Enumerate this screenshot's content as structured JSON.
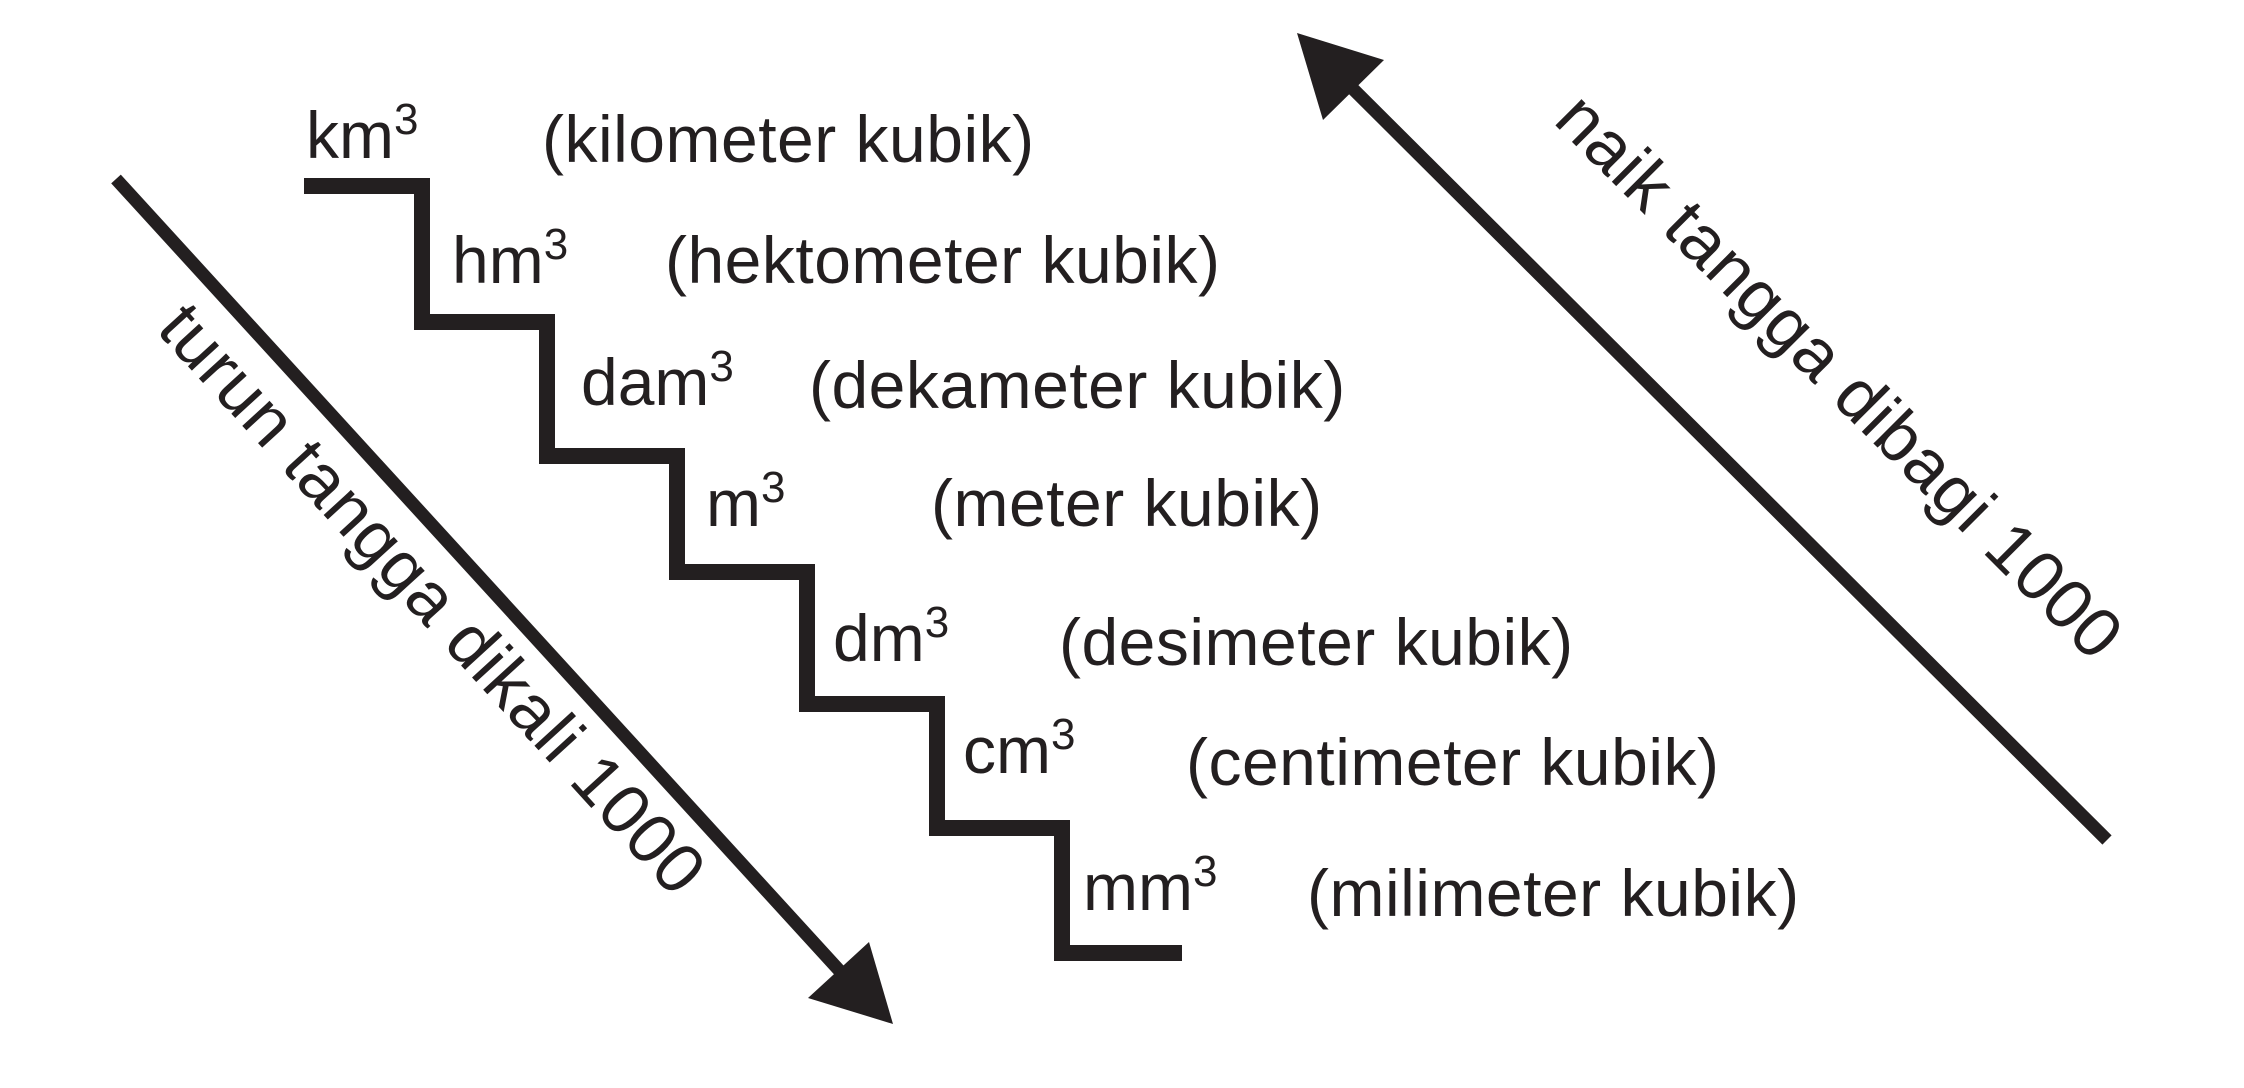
{
  "colors": {
    "ink": "#231f20",
    "background": "#ffffff"
  },
  "units": [
    {
      "symbol": "km",
      "exp": "3",
      "name": "(kilometer kubik)"
    },
    {
      "symbol": "hm",
      "exp": "3",
      "name": "(hektometer kubik)"
    },
    {
      "symbol": "dam",
      "exp": "3",
      "name": "(dekameter kubik)"
    },
    {
      "symbol": "m",
      "exp": "3",
      "name": "(meter kubik)"
    },
    {
      "symbol": "dm",
      "exp": "3",
      "name": "(desimeter kubik)"
    },
    {
      "symbol": "cm",
      "exp": "3",
      "name": "(centimeter kubik)"
    },
    {
      "symbol": "mm",
      "exp": "3",
      "name": "(milimeter kubik)"
    }
  ],
  "arrows": {
    "down_label": "turun tangga dikali 1000",
    "up_label": "naik tangga dibagi 1000"
  },
  "icons": {
    "down_arrow": "arrow-down-right-icon",
    "up_arrow": "arrow-up-left-icon"
  }
}
